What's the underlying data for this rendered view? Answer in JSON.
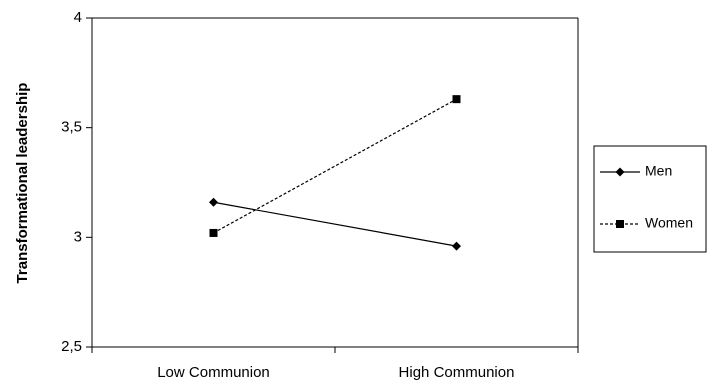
{
  "chart_data": {
    "type": "line",
    "title": "",
    "xlabel": "",
    "ylabel": "Transformational leadership",
    "categories": [
      "Low Communion",
      "High Communion"
    ],
    "ylim": [
      2.5,
      4
    ],
    "yticks": [
      "2,5",
      "3",
      "3,5",
      "4"
    ],
    "ytick_values": [
      2.5,
      3,
      3.5,
      4
    ],
    "grid": false,
    "legend_position": "right",
    "series": [
      {
        "name": "Men",
        "values": [
          3.16,
          2.96
        ],
        "line_style": "solid",
        "marker": "diamond",
        "color": "#000000"
      },
      {
        "name": "Women",
        "values": [
          3.02,
          3.63
        ],
        "line_style": "dashed",
        "marker": "square",
        "color": "#000000"
      }
    ]
  }
}
